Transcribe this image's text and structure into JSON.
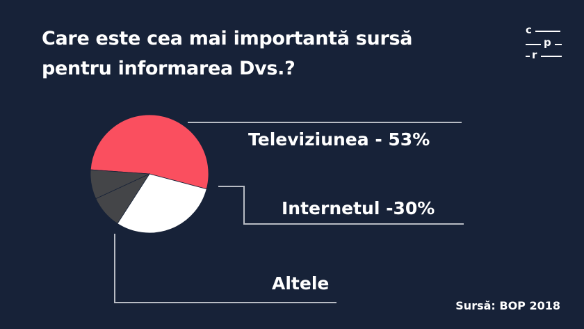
{
  "title": "Care este cea mai importantă sursă pentru informarea Dvs.?",
  "logo": {
    "c": "c",
    "p": "p",
    "r": "r"
  },
  "source": "Sursă: BOP 2018",
  "colors": {
    "background": "#172238",
    "televiziunea": "#fa4f5f",
    "internetul": "#ffffff",
    "altele": "#444548",
    "leader": "#b8bcc4"
  },
  "chart_data": {
    "type": "pie",
    "title": "Care este cea mai importantă sursă pentru informarea Dvs.?",
    "labels": [
      "Televiziunea - 53%",
      "Internetul -30%",
      "Altele"
    ],
    "slices": [
      {
        "name": "Televiziunea",
        "value": 53,
        "color": "#fa4f5f"
      },
      {
        "name": "Internetul",
        "value": 30,
        "color": "#ffffff"
      },
      {
        "name": "Altele",
        "value": 9,
        "color": "#444548"
      },
      {
        "name": "Altele",
        "value": 8,
        "color": "#444548"
      }
    ]
  }
}
